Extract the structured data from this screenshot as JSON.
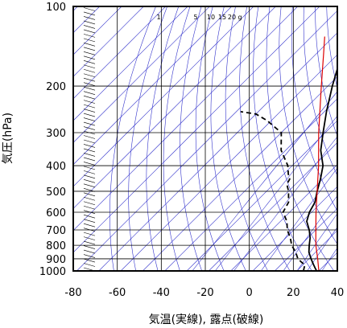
{
  "chart_data": {
    "type": "skew-t",
    "xlabel": "気温(実線), 露点(破線)",
    "ylabel": "気圧(hPa)",
    "xlim": [
      -80,
      40
    ],
    "ylim": [
      1000,
      100
    ],
    "y_scale": "log",
    "x_ticks": [
      "-80",
      "-60",
      "-40",
      "-20",
      "0",
      "20",
      "40"
    ],
    "y_ticks": [
      "100",
      "200",
      "300",
      "400",
      "500",
      "600",
      "700",
      "800",
      "900",
      "1000"
    ],
    "mixing_ratio_labels": [
      "1",
      "5",
      "10",
      "15",
      "20",
      "g"
    ],
    "colors": {
      "frame": "#000000",
      "grid": "#000000",
      "background_lines": "#3333cc",
      "parcel": "#dd0000",
      "temperature": "#000000",
      "dewpoint": "#000000"
    },
    "series": [
      {
        "line_style": "solid",
        "points": [
          [
            1000,
            29
          ],
          [
            975,
            27
          ],
          [
            950,
            25
          ],
          [
            925,
            23
          ],
          [
            900,
            21
          ],
          [
            850,
            17
          ],
          [
            800,
            14
          ],
          [
            750,
            11
          ],
          [
            700,
            7
          ],
          [
            650,
            2
          ],
          [
            600,
            -1
          ],
          [
            550,
            -3
          ],
          [
            500,
            -7
          ],
          [
            450,
            -11
          ],
          [
            400,
            -16
          ],
          [
            350,
            -24
          ],
          [
            300,
            -31
          ],
          [
            250,
            -39
          ],
          [
            200,
            -48
          ],
          [
            170,
            -54
          ],
          [
            150,
            -59
          ],
          [
            130,
            -63
          ],
          [
            115,
            -68
          ],
          [
            105,
            -72
          ],
          [
            100,
            -74
          ]
        ]
      },
      {
        "line_style": "dashed",
        "points": [
          [
            1000,
            23
          ],
          [
            975,
            22
          ],
          [
            950,
            21
          ],
          [
            925,
            18
          ],
          [
            900,
            15
          ],
          [
            850,
            11
          ],
          [
            800,
            6
          ],
          [
            750,
            2
          ],
          [
            700,
            -3
          ],
          [
            650,
            -7
          ],
          [
            600,
            -13
          ],
          [
            550,
            -15
          ],
          [
            500,
            -20
          ],
          [
            470,
            -24
          ],
          [
            450,
            -25
          ],
          [
            430,
            -28
          ],
          [
            400,
            -32
          ],
          [
            350,
            -42
          ],
          [
            300,
            -50
          ],
          [
            270,
            -62
          ],
          [
            255,
            -70
          ],
          [
            250,
            -78
          ]
        ]
      },
      {
        "line_style": "solid",
        "points": [
          [
            1000,
            30
          ],
          [
            900,
            24
          ],
          [
            800,
            17
          ],
          [
            700,
            10
          ],
          [
            600,
            2
          ],
          [
            500,
            -7
          ],
          [
            400,
            -18
          ],
          [
            300,
            -33
          ],
          [
            250,
            -42
          ],
          [
            200,
            -53
          ],
          [
            150,
            -67
          ],
          [
            130,
            -74
          ]
        ]
      }
    ]
  }
}
